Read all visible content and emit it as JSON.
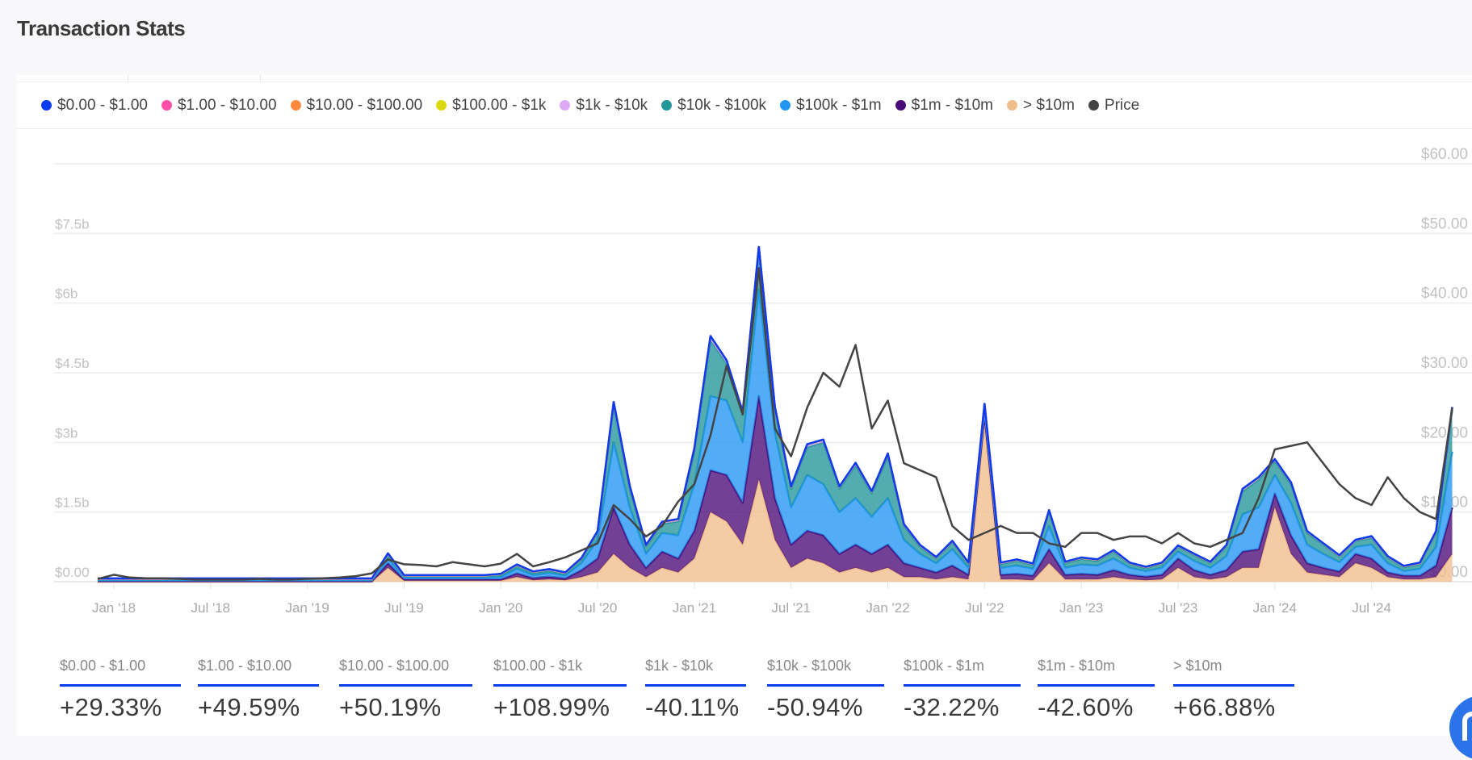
{
  "header": {
    "title": "Transaction Stats"
  },
  "legend": [
    {
      "label": "$0.00 - $1.00",
      "color": "#0a3cf0"
    },
    {
      "label": "$1.00 - $10.00",
      "color": "#ff4fa8"
    },
    {
      "label": "$10.00 - $100.00",
      "color": "#ff8a3d"
    },
    {
      "label": "$100.00 - $1k",
      "color": "#dcd80e"
    },
    {
      "label": "$1k - $10k",
      "color": "#dcaaf6"
    },
    {
      "label": "$10k - $100k",
      "color": "#23969a"
    },
    {
      "label": "$100k - $1m",
      "color": "#2196f3"
    },
    {
      "label": "$1m - $10m",
      "color": "#4a0a77"
    },
    {
      "label": "> $10m",
      "color": "#f0bd8c"
    },
    {
      "label": "Price",
      "color": "#444444"
    }
  ],
  "stats": [
    {
      "label": "$0.00 - $1.00",
      "value": "+29.33%"
    },
    {
      "label": "$1.00 - $10.00",
      "value": "+49.59%"
    },
    {
      "label": "$10.00 - $100.00",
      "value": "+50.19%"
    },
    {
      "label": "$100.00 - $1k",
      "value": "+108.99%"
    },
    {
      "label": "$1k - $10k",
      "value": "-40.11%"
    },
    {
      "label": "$10k - $100k",
      "value": "-50.94%"
    },
    {
      "label": "$100k - $1m",
      "value": "-32.22%"
    },
    {
      "label": "$1m - $10m",
      "value": "-42.60%"
    },
    {
      "label": "> $10m",
      "value": "+66.88%"
    }
  ],
  "chart_data": {
    "type": "area",
    "stacked": true,
    "grid": true,
    "legend_position": "top",
    "x_start": "2017-12",
    "x_end": "2024-12",
    "x_interval": "month",
    "x_ticks": [
      "Jan '18",
      "Jul '18",
      "Jan '19",
      "Jul '19",
      "Jan '20",
      "Jul '20",
      "Jan '21",
      "Jul '21",
      "Jan '22",
      "Jul '22",
      "Jan '23",
      "Jul '23",
      "Jan '24",
      "Jul '24"
    ],
    "y_left": {
      "ticks": [
        "$0.00",
        "$1.5b",
        "$3b",
        "$4.5b",
        "$6b",
        "$7.5b"
      ],
      "range_billions": [
        0,
        9
      ]
    },
    "y_right": {
      "ticks": [
        "$0.00",
        "$10.00",
        "$20.00",
        "$30.00",
        "$40.00",
        "$50.00",
        "$60.00"
      ],
      "range": [
        0,
        60
      ]
    },
    "series": [
      {
        "name": "> $10m",
        "color": "#f0bd8c",
        "values": [
          0,
          0,
          0,
          0,
          0,
          0,
          0,
          0,
          0,
          0,
          0,
          0,
          0,
          0,
          0,
          0,
          0,
          0,
          0.3,
          0.02,
          0.02,
          0.02,
          0.02,
          0.02,
          0.02,
          0.02,
          0.1,
          0.03,
          0.05,
          0.03,
          0.1,
          0.2,
          0.6,
          0.3,
          0.1,
          0.3,
          0.2,
          0.5,
          1.5,
          1.3,
          0.8,
          2.2,
          0.9,
          0.3,
          0.5,
          0.4,
          0.2,
          0.3,
          0.2,
          0.3,
          0.1,
          0.1,
          0.05,
          0.1,
          0.05,
          3.4,
          0.05,
          0.05,
          0.03,
          0.4,
          0.05,
          0.05,
          0.05,
          0.1,
          0.05,
          0.03,
          0.05,
          0.3,
          0.1,
          0.05,
          0.1,
          0.3,
          0.3,
          1.6,
          0.6,
          0.2,
          0.15,
          0.1,
          0.4,
          0.3,
          0.1,
          0.05,
          0.05,
          0.1,
          0.6
        ]
      },
      {
        "name": "$1m - $10m",
        "color": "#4a0a77",
        "values": [
          0.01,
          0.01,
          0.01,
          0.01,
          0.01,
          0.01,
          0.01,
          0.01,
          0.01,
          0.01,
          0.01,
          0.01,
          0.01,
          0.01,
          0.01,
          0.01,
          0.01,
          0.01,
          0.1,
          0.03,
          0.03,
          0.03,
          0.03,
          0.03,
          0.03,
          0.03,
          0.08,
          0.05,
          0.06,
          0.04,
          0.15,
          0.3,
          1.0,
          0.5,
          0.2,
          0.35,
          0.3,
          0.6,
          0.9,
          1.0,
          0.9,
          1.8,
          0.9,
          0.5,
          0.6,
          0.6,
          0.4,
          0.5,
          0.4,
          0.5,
          0.3,
          0.2,
          0.15,
          0.25,
          0.1,
          0.2,
          0.1,
          0.12,
          0.1,
          0.3,
          0.1,
          0.12,
          0.1,
          0.15,
          0.1,
          0.08,
          0.1,
          0.2,
          0.15,
          0.1,
          0.15,
          0.35,
          0.4,
          0.3,
          0.4,
          0.2,
          0.15,
          0.12,
          0.2,
          0.2,
          0.1,
          0.08,
          0.08,
          0.25,
          1.0
        ]
      },
      {
        "name": "$100k - $1m",
        "color": "#2196f3",
        "values": [
          0.02,
          0.02,
          0.02,
          0.02,
          0.02,
          0.02,
          0.02,
          0.02,
          0.02,
          0.02,
          0.02,
          0.02,
          0.02,
          0.02,
          0.02,
          0.02,
          0.02,
          0.02,
          0.1,
          0.04,
          0.04,
          0.04,
          0.04,
          0.04,
          0.04,
          0.05,
          0.1,
          0.06,
          0.08,
          0.06,
          0.15,
          0.4,
          1.4,
          0.8,
          0.3,
          0.4,
          0.5,
          1.0,
          1.6,
          1.6,
          1.3,
          2.3,
          1.4,
          0.8,
          1.2,
          1.1,
          0.9,
          1.0,
          0.8,
          1.0,
          0.5,
          0.3,
          0.2,
          0.35,
          0.15,
          0.1,
          0.15,
          0.18,
          0.15,
          0.5,
          0.15,
          0.2,
          0.2,
          0.25,
          0.15,
          0.12,
          0.15,
          0.15,
          0.2,
          0.15,
          0.3,
          0.8,
          0.9,
          0.4,
          0.7,
          0.4,
          0.3,
          0.2,
          0.15,
          0.3,
          0.2,
          0.1,
          0.15,
          0.4,
          1.2
        ]
      },
      {
        "name": "$10k - $100k",
        "color": "#23969a",
        "values": [
          0.02,
          0.02,
          0.02,
          0.02,
          0.02,
          0.02,
          0.02,
          0.02,
          0.02,
          0.02,
          0.02,
          0.02,
          0.02,
          0.02,
          0.02,
          0.02,
          0.02,
          0.02,
          0.08,
          0.03,
          0.03,
          0.03,
          0.03,
          0.03,
          0.03,
          0.04,
          0.06,
          0.05,
          0.05,
          0.04,
          0.08,
          0.15,
          0.8,
          0.4,
          0.15,
          0.2,
          0.3,
          0.7,
          1.2,
          0.8,
          0.6,
          0.8,
          0.5,
          0.4,
          0.6,
          0.9,
          0.5,
          0.7,
          0.5,
          0.9,
          0.3,
          0.15,
          0.1,
          0.15,
          0.08,
          0.1,
          0.08,
          0.1,
          0.08,
          0.3,
          0.1,
          0.12,
          0.1,
          0.15,
          0.08,
          0.06,
          0.08,
          0.1,
          0.12,
          0.1,
          0.2,
          0.5,
          0.6,
          0.3,
          0.4,
          0.25,
          0.2,
          0.12,
          0.12,
          0.15,
          0.12,
          0.08,
          0.1,
          0.3,
          0.9
        ]
      },
      {
        "name": "$1k - $10k",
        "color": "#dcaaf6",
        "values": [
          0.01,
          0.01,
          0.01,
          0.01,
          0.01,
          0.01,
          0.01,
          0.01,
          0.01,
          0.01,
          0.01,
          0.01,
          0.01,
          0.01,
          0.01,
          0.01,
          0.01,
          0.01,
          0.02,
          0.01,
          0.01,
          0.01,
          0.01,
          0.01,
          0.01,
          0.02,
          0.02,
          0.02,
          0.02,
          0.02,
          0.02,
          0.03,
          0.06,
          0.05,
          0.03,
          0.03,
          0.04,
          0.06,
          0.08,
          0.06,
          0.05,
          0.1,
          0.05,
          0.04,
          0.05,
          0.05,
          0.04,
          0.05,
          0.04,
          0.05,
          0.03,
          0.03,
          0.02,
          0.02,
          0.02,
          0.02,
          0.02,
          0.02,
          0.02,
          0.03,
          0.02,
          0.02,
          0.02,
          0.02,
          0.02,
          0.02,
          0.02,
          0.02,
          0.02,
          0.02,
          0.03,
          0.04,
          0.04,
          0.03,
          0.03,
          0.03,
          0.02,
          0.02,
          0.02,
          0.02,
          0.02,
          0.02,
          0.02,
          0.03,
          0.05
        ]
      },
      {
        "name": "$100.00 - $1k",
        "color": "#dcd80e",
        "values": [
          0.005,
          0.005,
          0.005,
          0.005,
          0.005,
          0.005,
          0.005,
          0.005,
          0.005,
          0.005,
          0.005,
          0.005,
          0.005,
          0.005,
          0.005,
          0.005,
          0.005,
          0.005,
          0.005,
          0.005,
          0.005,
          0.005,
          0.005,
          0.005,
          0.005,
          0.005,
          0.005,
          0.005,
          0.005,
          0.005,
          0.005,
          0.005,
          0.005,
          0.005,
          0.005,
          0.005,
          0.005,
          0.005,
          0.005,
          0.005,
          0.005,
          0.005,
          0.005,
          0.005,
          0.005,
          0.005,
          0.005,
          0.005,
          0.005,
          0.005,
          0.005,
          0.005,
          0.005,
          0.005,
          0.005,
          0.005,
          0.005,
          0.005,
          0.005,
          0.005,
          0.005,
          0.005,
          0.005,
          0.005,
          0.005,
          0.005,
          0.005,
          0.005,
          0.005,
          0.005,
          0.005,
          0.005,
          0.005,
          0.005,
          0.005,
          0.005,
          0.005,
          0.005,
          0.005,
          0.005,
          0.005,
          0.005,
          0.005,
          0.005,
          0.005
        ]
      },
      {
        "name": "$10.00 - $100.00",
        "color": "#ff8a3d",
        "values": [
          0.003,
          0.003,
          0.003,
          0.003,
          0.003,
          0.003,
          0.003,
          0.003,
          0.003,
          0.003,
          0.003,
          0.003,
          0.003,
          0.003,
          0.003,
          0.003,
          0.003,
          0.003,
          0.003,
          0.003,
          0.003,
          0.003,
          0.003,
          0.003,
          0.003,
          0.003,
          0.003,
          0.003,
          0.003,
          0.003,
          0.003,
          0.003,
          0.003,
          0.003,
          0.003,
          0.003,
          0.003,
          0.003,
          0.003,
          0.003,
          0.003,
          0.003,
          0.003,
          0.003,
          0.003,
          0.003,
          0.003,
          0.003,
          0.003,
          0.003,
          0.003,
          0.003,
          0.003,
          0.003,
          0.003,
          0.003,
          0.003,
          0.003,
          0.003,
          0.003,
          0.003,
          0.003,
          0.003,
          0.003,
          0.003,
          0.003,
          0.003,
          0.003,
          0.003,
          0.003,
          0.003,
          0.003,
          0.003,
          0.003,
          0.003,
          0.003,
          0.003,
          0.003,
          0.003,
          0.003,
          0.003,
          0.003,
          0.003,
          0.003,
          0.003
        ]
      },
      {
        "name": "$1.00 - $10.00",
        "color": "#ff4fa8",
        "values": [
          0.002,
          0.002,
          0.002,
          0.002,
          0.002,
          0.002,
          0.002,
          0.002,
          0.002,
          0.002,
          0.002,
          0.002,
          0.002,
          0.002,
          0.002,
          0.002,
          0.002,
          0.002,
          0.002,
          0.002,
          0.002,
          0.002,
          0.002,
          0.002,
          0.002,
          0.002,
          0.002,
          0.002,
          0.002,
          0.002,
          0.002,
          0.002,
          0.002,
          0.002,
          0.002,
          0.002,
          0.002,
          0.002,
          0.002,
          0.002,
          0.002,
          0.002,
          0.002,
          0.002,
          0.002,
          0.002,
          0.002,
          0.002,
          0.002,
          0.002,
          0.002,
          0.002,
          0.002,
          0.002,
          0.002,
          0.002,
          0.002,
          0.002,
          0.002,
          0.002,
          0.002,
          0.002,
          0.002,
          0.002,
          0.002,
          0.002,
          0.002,
          0.002,
          0.002,
          0.002,
          0.002,
          0.002,
          0.002,
          0.002,
          0.002,
          0.002,
          0.002,
          0.002,
          0.002,
          0.002,
          0.002,
          0.002,
          0.002,
          0.002,
          0.002
        ]
      },
      {
        "name": "$0.00 - $1.00",
        "color": "#0a3cf0",
        "values": [
          0.001,
          0.001,
          0.001,
          0.001,
          0.001,
          0.001,
          0.001,
          0.001,
          0.001,
          0.001,
          0.001,
          0.001,
          0.001,
          0.001,
          0.001,
          0.001,
          0.001,
          0.001,
          0.001,
          0.001,
          0.001,
          0.001,
          0.001,
          0.001,
          0.001,
          0.001,
          0.001,
          0.001,
          0.001,
          0.001,
          0.001,
          0.001,
          0.001,
          0.001,
          0.001,
          0.001,
          0.001,
          0.001,
          0.001,
          0.001,
          0.001,
          0.001,
          0.001,
          0.001,
          0.001,
          0.001,
          0.001,
          0.001,
          0.001,
          0.001,
          0.001,
          0.001,
          0.001,
          0.001,
          0.001,
          0.001,
          0.001,
          0.001,
          0.001,
          0.001,
          0.001,
          0.001,
          0.001,
          0.001,
          0.001,
          0.001,
          0.001,
          0.001,
          0.001,
          0.001,
          0.001,
          0.001,
          0.001,
          0.001,
          0.001,
          0.001,
          0.001,
          0.001,
          0.001,
          0.001,
          0.001,
          0.001,
          0.001,
          0.001,
          0.001
        ]
      }
    ],
    "price": {
      "name": "Price",
      "color": "#444444",
      "axis": "right",
      "values": [
        0.4,
        1.0,
        0.6,
        0.5,
        0.5,
        0.4,
        0.3,
        0.3,
        0.3,
        0.3,
        0.4,
        0.3,
        0.3,
        0.4,
        0.5,
        0.6,
        0.8,
        1.2,
        3.2,
        2.5,
        2.4,
        2.2,
        2.8,
        2.5,
        2.2,
        2.6,
        4.0,
        2.2,
        2.8,
        3.5,
        4.5,
        5.5,
        11,
        9,
        6.5,
        8,
        11.5,
        14,
        21,
        31,
        24,
        45,
        22,
        18,
        25,
        30,
        28,
        34,
        22,
        26,
        17,
        16,
        15,
        8,
        6,
        7,
        8,
        7,
        7,
        5.5,
        5,
        7,
        7,
        6,
        6.5,
        6.5,
        5.5,
        7,
        5.5,
        5,
        6,
        7,
        12,
        19,
        19.5,
        20,
        17,
        14,
        12,
        11,
        15,
        12,
        10,
        9,
        25
      ]
    }
  }
}
